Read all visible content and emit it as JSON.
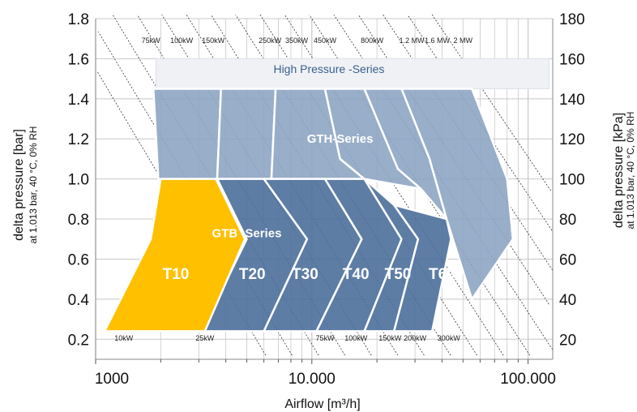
{
  "chart_data": {
    "type": "area",
    "xscale": "log",
    "xlim": [
      1000,
      130000
    ],
    "ylim": [
      0.1,
      1.8
    ],
    "y2lim": [
      10,
      180
    ],
    "xlabel": "Airflow [m³/h]",
    "ylabel": "delta pressure [bar]",
    "ylabel_sub": "at 1.013 bar, 40 °C, 0% RH",
    "y2label": "delta pressure [kPa]",
    "y2label_sub": "at 1.013 bar, 40 °C, 0% RH",
    "x_ticks": [
      {
        "value": 1000,
        "label": "1000"
      },
      {
        "value": 10000,
        "label": "10.000"
      },
      {
        "value": 100000,
        "label": "100.000"
      }
    ],
    "y_ticks": [
      "0.2",
      "0.4",
      "0.6",
      "0.8",
      "1.0",
      "1.2",
      "1.4",
      "1.6",
      "1.8"
    ],
    "y2_ticks": [
      "20",
      "40",
      "60",
      "80",
      "100",
      "120",
      "140",
      "160",
      "180"
    ],
    "grid": true,
    "power_labels_top": [
      {
        "label": "75kW",
        "x": 1800
      },
      {
        "label": "100kW",
        "x": 2500
      },
      {
        "label": "150kW",
        "x": 3500
      },
      {
        "label": "250kW",
        "x": 6400
      },
      {
        "label": "350kW",
        "x": 8500
      },
      {
        "label": "450kW",
        "x": 11500
      },
      {
        "label": "800kW",
        "x": 19000
      },
      {
        "label": "1.2 MW",
        "x": 29000
      },
      {
        "label": "1.6 MW",
        "x": 38000
      },
      {
        "label": "2 MW",
        "x": 50000
      }
    ],
    "power_labels_bottom": [
      {
        "label": "10kW",
        "x": 1350
      },
      {
        "label": "25kW",
        "x": 3200
      },
      {
        "label": "75kW",
        "x": 11500
      },
      {
        "label": "100kW",
        "x": 16000
      },
      {
        "label": "150kW",
        "x": 23000
      },
      {
        "label": "200kW",
        "x": 30000
      },
      {
        "label": "300kW",
        "x": 43000
      }
    ],
    "regions": [
      {
        "name": "High Pressure -Series",
        "label": "High Pressure -Series",
        "label_at": [
          12000,
          1.55
        ],
        "points": [
          [
            1900,
            1.6
          ],
          [
            125000,
            1.6
          ],
          [
            125000,
            1.45
          ],
          [
            1900,
            1.45
          ]
        ]
      }
    ],
    "series": [
      {
        "name": "GTH-Series",
        "label": "GTH-Series",
        "label_at": [
          13500,
          1.2
        ],
        "zones": [
          [
            [
              1850,
              1.45
            ],
            [
              3800,
              1.45
            ],
            [
              3650,
              1.0
            ],
            [
              1950,
              1.0
            ]
          ],
          [
            [
              3800,
              1.45
            ],
            [
              6800,
              1.45
            ],
            [
              6500,
              1.0
            ],
            [
              3650,
              1.0
            ]
          ],
          [
            [
              6800,
              1.45
            ],
            [
              11500,
              1.45
            ],
            [
              13500,
              1.1
            ],
            [
              17500,
              1.0
            ],
            [
              6500,
              1.0
            ]
          ],
          [
            [
              11500,
              1.45
            ],
            [
              17500,
              1.45
            ],
            [
              25000,
              1.05
            ],
            [
              32000,
              0.95
            ],
            [
              17500,
              1.0
            ],
            [
              13500,
              1.1
            ]
          ],
          [
            [
              17500,
              1.45
            ],
            [
              26000,
              1.45
            ],
            [
              35000,
              1.1
            ],
            [
              42000,
              0.8
            ],
            [
              32000,
              0.95
            ],
            [
              25000,
              1.05
            ]
          ],
          [
            [
              26000,
              1.45
            ],
            [
              55000,
              1.45
            ],
            [
              80000,
              1.0
            ],
            [
              85000,
              0.7
            ],
            [
              55000,
              0.4
            ],
            [
              42000,
              0.8
            ],
            [
              35000,
              1.1
            ]
          ]
        ]
      },
      {
        "name": "GTB-Series",
        "label": "GTB -Series",
        "label_at": [
          5000,
          0.73
        ],
        "zones": [
          [
            [
              3650,
              1.0
            ],
            [
              6000,
              1.0
            ],
            [
              9500,
              0.7
            ],
            [
              6000,
              0.24
            ],
            [
              3100,
              0.24
            ],
            [
              5000,
              0.7
            ]
          ],
          [
            [
              6000,
              1.0
            ],
            [
              11500,
              1.0
            ],
            [
              17000,
              0.7
            ],
            [
              10500,
              0.24
            ],
            [
              6000,
              0.24
            ],
            [
              9500,
              0.7
            ]
          ],
          [
            [
              11500,
              1.0
            ],
            [
              17500,
              1.0
            ],
            [
              26000,
              0.7
            ],
            [
              17500,
              0.24
            ],
            [
              10500,
              0.24
            ],
            [
              17000,
              0.7
            ]
          ],
          [
            [
              17500,
              1.0
            ],
            [
              24000,
              0.87
            ],
            [
              31000,
              0.7
            ],
            [
              24000,
              0.24
            ],
            [
              17500,
              0.24
            ],
            [
              26000,
              0.7
            ]
          ],
          [
            [
              24000,
              0.87
            ],
            [
              42000,
              0.8
            ],
            [
              44000,
              0.7
            ],
            [
              36000,
              0.24
            ],
            [
              24000,
              0.24
            ],
            [
              31000,
              0.7
            ]
          ]
        ]
      }
    ],
    "models": [
      {
        "name": "T10",
        "label": "T10",
        "label_at": [
          2350,
          0.53
        ],
        "color": "#FFC000",
        "points": [
          [
            2000,
            1.0
          ],
          [
            3600,
            1.0
          ],
          [
            4900,
            0.7
          ],
          [
            3200,
            0.24
          ],
          [
            1100,
            0.24
          ],
          [
            1800,
            0.7
          ]
        ]
      },
      {
        "name": "T20",
        "label": "T20",
        "label_at": [
          5300,
          0.53
        ]
      },
      {
        "name": "T30",
        "label": "T30",
        "label_at": [
          9300,
          0.53
        ]
      },
      {
        "name": "T40",
        "label": "T40",
        "label_at": [
          16000,
          0.53
        ]
      },
      {
        "name": "T50",
        "label": "T50",
        "label_at": [
          25000,
          0.53
        ]
      },
      {
        "name": "T60",
        "label": "T60",
        "label_at": [
          40000,
          0.53
        ]
      }
    ],
    "colors": {
      "gth": "#8ea5c2",
      "gtb": "#4c6f9b",
      "hp": "#eff1f4",
      "t10": "#FFC000",
      "grid": "#c8c8c8",
      "outline": "#ffffff"
    }
  }
}
